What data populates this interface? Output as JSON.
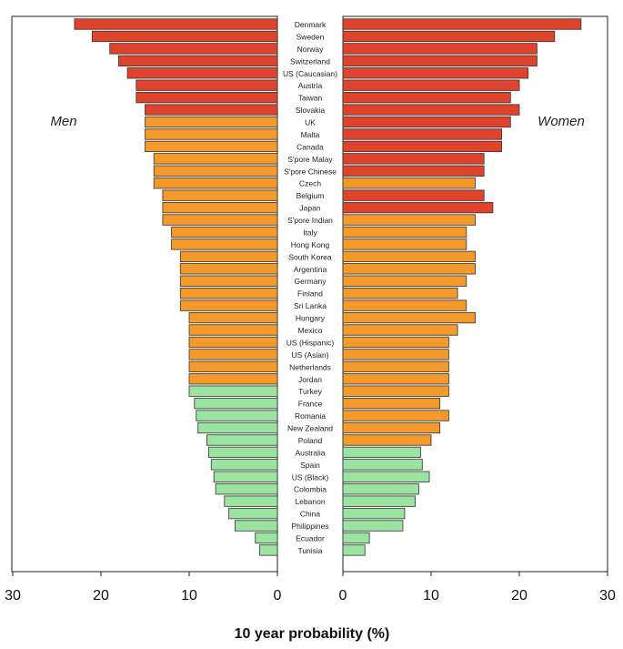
{
  "chart_data": {
    "type": "bar",
    "orientation": "horizontal",
    "layout": "back-to-back",
    "xlabel": "10 year probability (%)",
    "panels": [
      {
        "key": "men",
        "label": "Men",
        "xlim": [
          0,
          30
        ],
        "ticks": [
          0,
          10,
          20,
          30
        ],
        "direction": "reversed"
      },
      {
        "key": "women",
        "label": "Women",
        "xlim": [
          0,
          30
        ],
        "ticks": [
          0,
          10,
          20,
          30
        ],
        "direction": "normal"
      }
    ],
    "colors": {
      "high": "#e0432b",
      "medium": "#f39a2a",
      "low": "#9be3a0",
      "stroke": "#333333"
    },
    "categories": [
      "Denmark",
      "Sweden",
      "Norway",
      "Switzerland",
      "US (Caucasian)",
      "Austria",
      "Taiwan",
      "Slovakia",
      "UK",
      "Malta",
      "Canada",
      "S'pore Malay",
      "S'pore Chinese",
      "Czech",
      "Belgium",
      "Japan",
      "S'pore Indian",
      "Italy",
      "Hong Kong",
      "South Korea",
      "Argentina",
      "Germany",
      "Finland",
      "Sri Lanka",
      "Hungary",
      "Mexico",
      "US (Hispanic)",
      "US (Asian)",
      "Netherlands",
      "Jordan",
      "Turkey",
      "France",
      "Romania",
      "New Zealand",
      "Poland",
      "Australia",
      "Spain",
      "US (Black)",
      "Colombia",
      "Lebanon",
      "China",
      "Philippines",
      "Ecuador",
      "Tunisia"
    ],
    "series": [
      {
        "name": "Men",
        "values": [
          23,
          21,
          19,
          18,
          17,
          16,
          16,
          15,
          15,
          15,
          15,
          14,
          14,
          14,
          13,
          13,
          13,
          12,
          12,
          11,
          11,
          11,
          11,
          11,
          10,
          10,
          10,
          10,
          10,
          10,
          10,
          9.4,
          9.2,
          9,
          8,
          7.8,
          7.5,
          7.2,
          7,
          6,
          5.5,
          4.8,
          2.5,
          2
        ],
        "levels": [
          "high",
          "high",
          "high",
          "high",
          "high",
          "high",
          "high",
          "high",
          "medium",
          "medium",
          "medium",
          "medium",
          "medium",
          "medium",
          "medium",
          "medium",
          "medium",
          "medium",
          "medium",
          "medium",
          "medium",
          "medium",
          "medium",
          "medium",
          "medium",
          "medium",
          "medium",
          "medium",
          "medium",
          "medium",
          "low",
          "low",
          "low",
          "low",
          "low",
          "low",
          "low",
          "low",
          "low",
          "low",
          "low",
          "low",
          "low",
          "low"
        ]
      },
      {
        "name": "Women",
        "values": [
          27,
          24,
          22,
          22,
          21,
          20,
          19,
          20,
          19,
          18,
          18,
          16,
          16,
          15,
          16,
          17,
          15,
          14,
          14,
          15,
          15,
          14,
          13,
          14,
          15,
          13,
          12,
          12,
          12,
          12,
          12,
          11,
          12,
          11,
          10,
          8.8,
          9,
          9.8,
          8.6,
          8.2,
          7,
          6.8,
          3,
          2.5
        ],
        "levels": [
          "high",
          "high",
          "high",
          "high",
          "high",
          "high",
          "high",
          "high",
          "high",
          "high",
          "high",
          "high",
          "high",
          "medium",
          "high",
          "high",
          "medium",
          "medium",
          "medium",
          "medium",
          "medium",
          "medium",
          "medium",
          "medium",
          "medium",
          "medium",
          "medium",
          "medium",
          "medium",
          "medium",
          "medium",
          "medium",
          "medium",
          "medium",
          "medium",
          "low",
          "low",
          "low",
          "low",
          "low",
          "low",
          "low",
          "low",
          "low"
        ]
      }
    ]
  }
}
